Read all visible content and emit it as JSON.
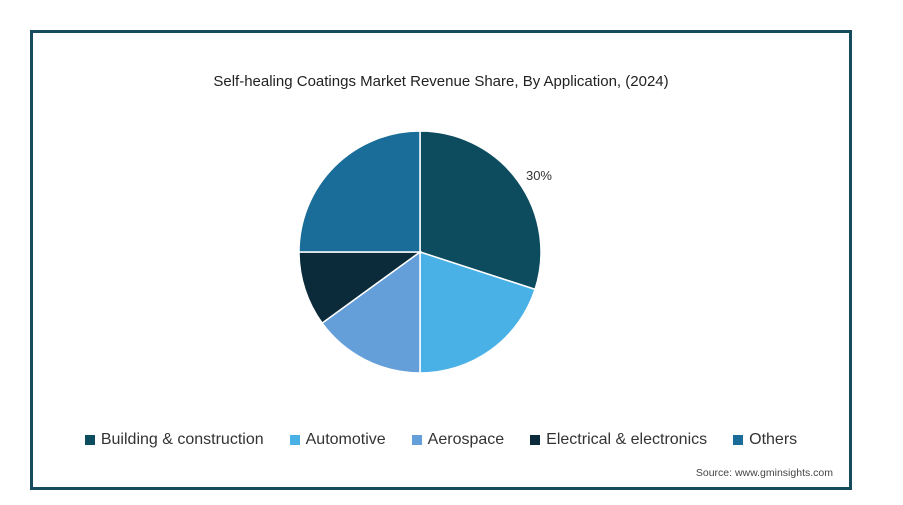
{
  "chart_data": {
    "type": "pie",
    "title": "Self-healing Coatings Market Revenue Share, By Application, (2024)",
    "slices": [
      {
        "label": "Building & construction",
        "value": 30,
        "color": "#0d4c5f",
        "data_label": "30%"
      },
      {
        "label": "Automotive",
        "value": 20,
        "color": "#49b1e5",
        "data_label": ""
      },
      {
        "label": "Aerospace",
        "value": 15,
        "color": "#659fd9",
        "data_label": ""
      },
      {
        "label": "Electrical & electronics",
        "value": 10,
        "color": "#0b2a3a",
        "data_label": ""
      },
      {
        "label": "Others",
        "value": 25,
        "color": "#1a6d99",
        "data_label": ""
      }
    ],
    "legend_position": "bottom",
    "source": "Source: www.gminsights.com"
  }
}
